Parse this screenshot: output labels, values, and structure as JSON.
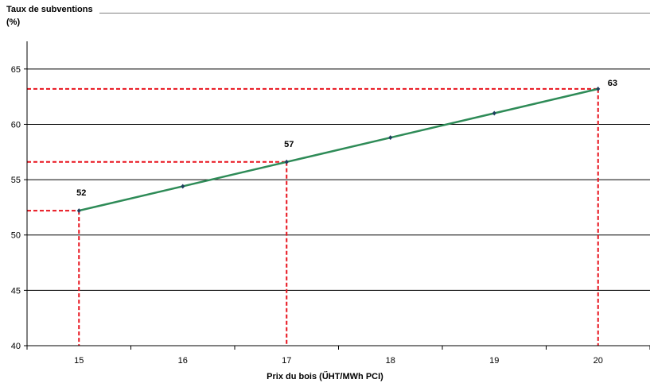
{
  "chart_data": {
    "type": "line",
    "ylabel": "Taux de subventions (%)",
    "xlabel": "Prix du bois (ŰHT/MWh PCI)",
    "ylim": [
      40,
      67.5
    ],
    "xlim": [
      14.5,
      20.5
    ],
    "yticks": [
      40,
      45,
      50,
      55,
      60,
      65
    ],
    "xticks": [
      15,
      16,
      17,
      18,
      19,
      20
    ],
    "grid": true,
    "series": [
      {
        "x": [
          15,
          16,
          17,
          18,
          19,
          20
        ],
        "y": [
          52.2,
          54.4,
          56.6,
          58.8,
          61.0,
          63.2
        ],
        "color": "#2e8b57"
      }
    ],
    "annotations": [
      {
        "x": 15,
        "y": 52.2,
        "text": "52"
      },
      {
        "x": 17,
        "y": 56.6,
        "text": "57"
      },
      {
        "x": 20,
        "y": 63.2,
        "text": "63"
      }
    ],
    "guide_color": "#e8141e"
  }
}
